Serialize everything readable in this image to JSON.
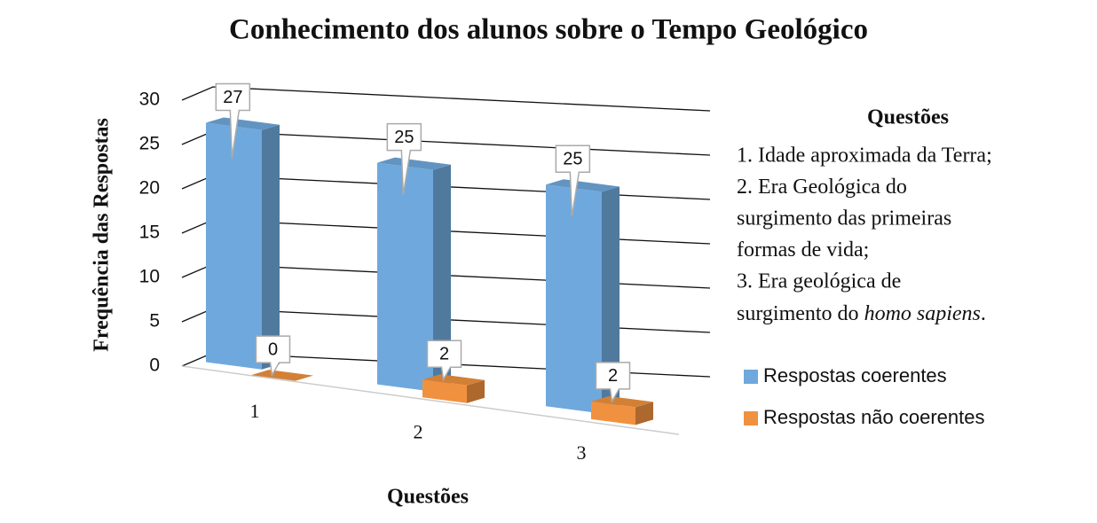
{
  "chart_data": {
    "type": "bar3d",
    "title": "Conhecimento dos alunos sobre o Tempo Geológico",
    "x_label": "Questões",
    "y_label": "Frequência das Respostas",
    "categories": [
      "1",
      "2",
      "3"
    ],
    "series": [
      {
        "name": "Respostas coerentes",
        "color": "#6fa8dc",
        "values": [
          27,
          25,
          25
        ]
      },
      {
        "name": "Respostas não coerentes",
        "color": "#f0913f",
        "values": [
          0,
          2,
          2
        ]
      }
    ],
    "ylim": [
      0,
      30
    ],
    "yticks": [
      0,
      5,
      10,
      15,
      20,
      25,
      30
    ],
    "grid": true,
    "annotation": {
      "title": "Questões",
      "lines": [
        "1. Idade aproximada da Terra;",
        "2. Era Geológica do",
        "surgimento das primeiras",
        "formas de vida;",
        "3. Era geológica de"
      ],
      "last_line": [
        "surgimento do ",
        "homo sapiens",
        "."
      ]
    }
  }
}
